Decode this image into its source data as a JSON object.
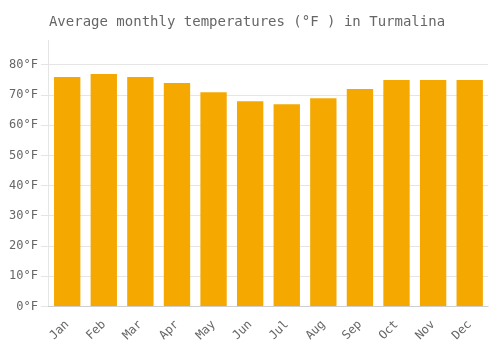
{
  "chart_data": {
    "type": "bar",
    "title": "Average monthly temperatures (°F ) in Turmalina",
    "categories": [
      "Jan",
      "Feb",
      "Mar",
      "Apr",
      "May",
      "Jun",
      "Jul",
      "Aug",
      "Sep",
      "Oct",
      "Nov",
      "Dec"
    ],
    "values": [
      76,
      77,
      76,
      74,
      71,
      68,
      67,
      69,
      72,
      75,
      75,
      75
    ],
    "color": "#F5A800",
    "ylim": [
      0,
      88
    ],
    "yticks": [
      {
        "value": 0,
        "label": "0°F"
      },
      {
        "value": 10,
        "label": "10°F"
      },
      {
        "value": 20,
        "label": "20°F"
      },
      {
        "value": 30,
        "label": "30°F"
      },
      {
        "value": 40,
        "label": "40°F"
      },
      {
        "value": 50,
        "label": "50°F"
      },
      {
        "value": 60,
        "label": "60°F"
      },
      {
        "value": 70,
        "label": "70°F"
      },
      {
        "value": 80,
        "label": "80°F"
      }
    ],
    "grid": true
  }
}
